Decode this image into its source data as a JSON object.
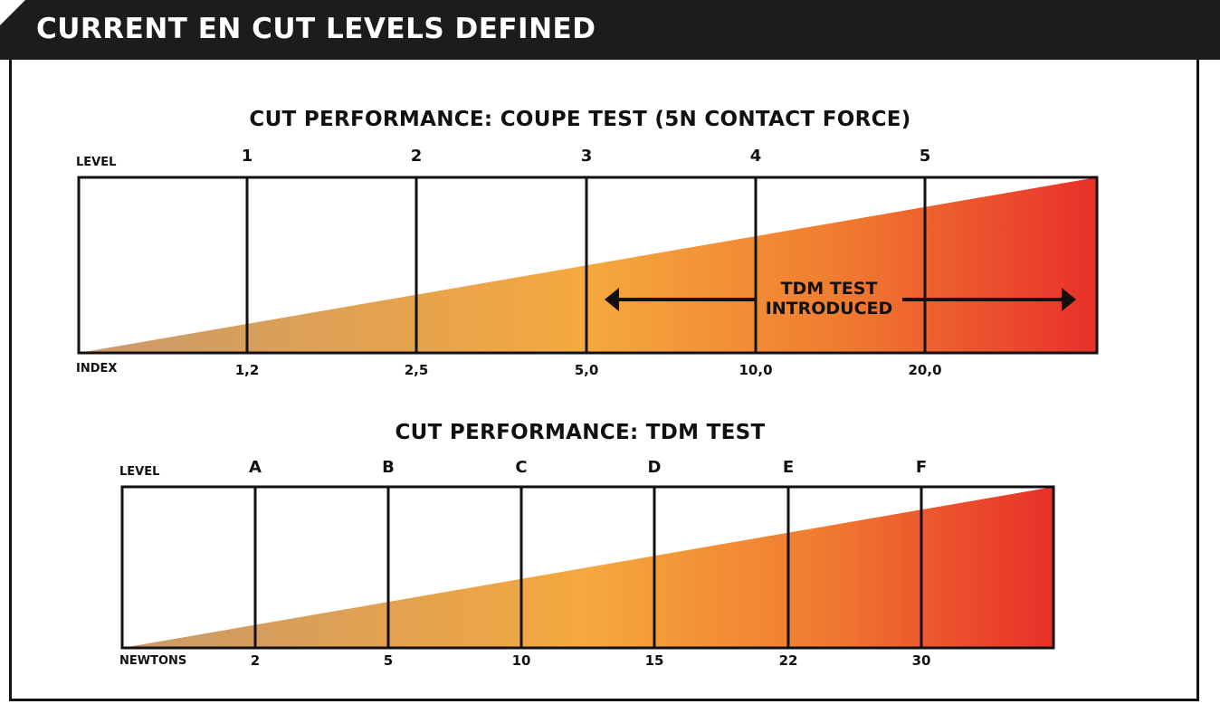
{
  "header": {
    "title": "CURRENT EN CUT LEVELS DEFINED",
    "bg_color": "#1c1c1c"
  },
  "colors": {
    "gradient": [
      "#c99a6a",
      "#f5a83e",
      "#f07b30",
      "#e8302a"
    ],
    "line": "#111111"
  },
  "coupe": {
    "title": "CUT PERFORMANCE: COUPE TEST (5N CONTACT FORCE)",
    "level_label": "LEVEL",
    "index_label": "INDEX",
    "levels": [
      "1",
      "2",
      "3",
      "4",
      "5"
    ],
    "index_values": [
      "1,2",
      "2,5",
      "5,0",
      "10,0",
      "20,0"
    ],
    "annotation": {
      "line1": "TDM TEST",
      "line2": "INTRODUCED"
    }
  },
  "tdm": {
    "title": "CUT PERFORMANCE: TDM TEST",
    "level_label": "LEVEL",
    "newtons_label": "NEWTONS",
    "levels": [
      "A",
      "B",
      "C",
      "D",
      "E",
      "F"
    ],
    "newtons": [
      "2",
      "5",
      "10",
      "15",
      "22",
      "30"
    ]
  }
}
